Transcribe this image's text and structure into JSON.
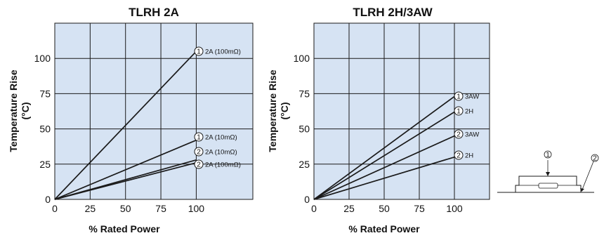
{
  "chart_data": [
    {
      "type": "line",
      "title": "TLRH 2A",
      "xlabel": "% Rated Power",
      "ylabel": "Temperature Rise",
      "ylabel_unit": "(°C)",
      "xlim": [
        0,
        140
      ],
      "ylim": [
        0,
        125
      ],
      "x_ticks": [
        "0",
        "25",
        "50",
        "75",
        "100"
      ],
      "y_ticks": [
        "0",
        "25",
        "50",
        "75",
        "100"
      ],
      "grid": true,
      "series": [
        {
          "marker": "1",
          "name": "2A (100mΩ)",
          "x": [
            0,
            100
          ],
          "y": [
            0,
            105
          ]
        },
        {
          "marker": "1",
          "name": "2A (10mΩ)",
          "x": [
            0,
            100
          ],
          "y": [
            0,
            42
          ]
        },
        {
          "marker": "2",
          "name": "2A (10mΩ)",
          "x": [
            0,
            100
          ],
          "y": [
            0,
            28
          ]
        },
        {
          "marker": "2",
          "name": "2A (100mΩ)",
          "x": [
            0,
            100
          ],
          "y": [
            0,
            26
          ]
        }
      ]
    },
    {
      "type": "line",
      "title": "TLRH 2H/3AW",
      "xlabel": "% Rated Power",
      "ylabel": "Temperature Rise",
      "ylabel_unit": "(°C)",
      "xlim": [
        0,
        125
      ],
      "ylim": [
        0,
        125
      ],
      "x_ticks": [
        "0",
        "25",
        "50",
        "75",
        "100"
      ],
      "y_ticks": [
        "0",
        "25",
        "50",
        "75",
        "100"
      ],
      "grid": true,
      "series": [
        {
          "marker": "1",
          "name": "3AW",
          "x": [
            0,
            100
          ],
          "y": [
            0,
            73
          ]
        },
        {
          "marker": "1",
          "name": "2H",
          "x": [
            0,
            100
          ],
          "y": [
            0,
            62
          ]
        },
        {
          "marker": "2",
          "name": "3AW",
          "x": [
            0,
            100
          ],
          "y": [
            0,
            45
          ]
        },
        {
          "marker": "2",
          "name": "2H",
          "x": [
            0,
            100
          ],
          "y": [
            0,
            30
          ]
        }
      ]
    }
  ],
  "diagram": {
    "markers": [
      "1",
      "2"
    ]
  },
  "colors": {
    "plot_bg": "#d6e3f3",
    "grid": "#1a1a1a",
    "line": "#1a1a1a"
  }
}
